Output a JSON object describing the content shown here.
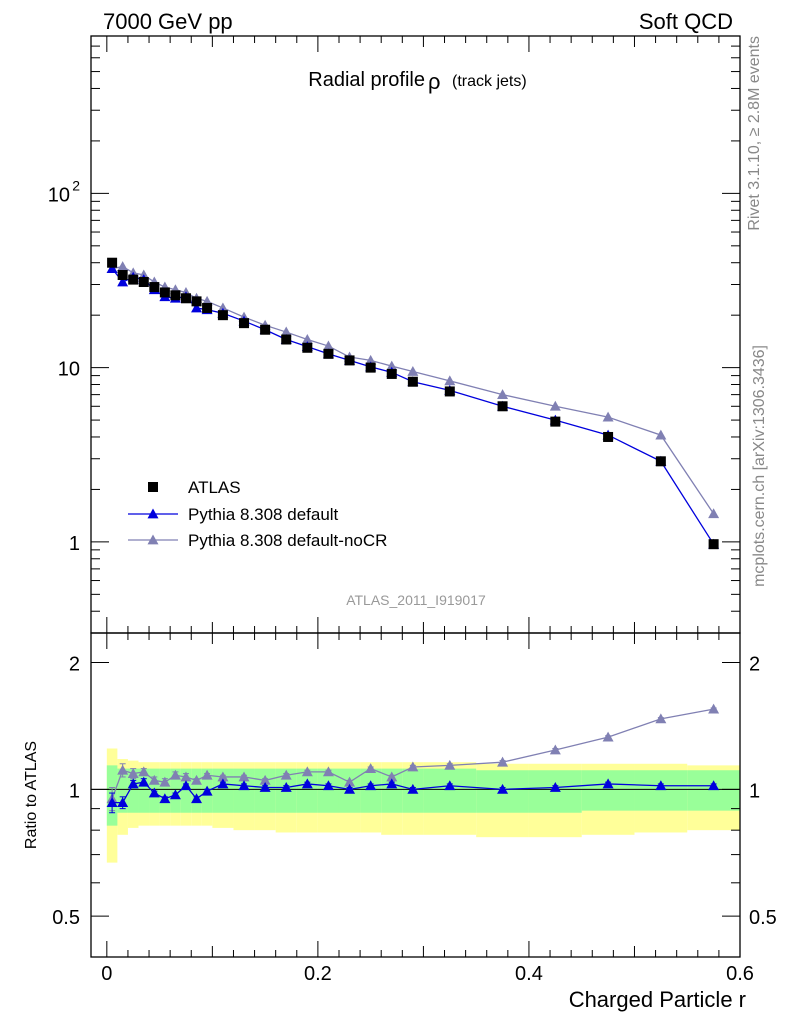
{
  "header": {
    "left": "7000 GeV pp",
    "right": "Soft QCD"
  },
  "side_labels": {
    "top": "Rivet 3.1.10, ≥ 2.8M events",
    "bottom": "mcplots.cern.ch [arXiv:1306.3436]"
  },
  "analysis_tag": "ATLAS_2011_I919017",
  "colors": {
    "atlas": "#000000",
    "default": "#0000dd",
    "nocr": "#8080b3",
    "band_stat": "#99ff99",
    "band_total": "#ffff99"
  },
  "chart_data": [
    {
      "type": "line",
      "title": "Radial profile",
      "title_symbol": "ρ",
      "title_suffix": "(track jets)",
      "xlabel": "Charged Particle r",
      "ylabel": "",
      "log_y": true,
      "xlim": [
        -0.015,
        0.6
      ],
      "ylim": [
        0.3,
        800
      ],
      "y_tick_labels": [
        {
          "value": 100,
          "base": "10",
          "exp": "2"
        },
        {
          "value": 10,
          "base": "10",
          "exp": ""
        },
        {
          "value": 1,
          "base": "1",
          "exp": ""
        }
      ],
      "legend": {
        "position": "bottom-left",
        "entries": [
          "ATLAS",
          "Pythia 8.308 default",
          "Pythia 8.308 default-noCR"
        ]
      },
      "x": [
        0.005,
        0.015,
        0.025,
        0.035,
        0.045,
        0.055,
        0.065,
        0.075,
        0.085,
        0.095,
        0.11,
        0.13,
        0.15,
        0.17,
        0.19,
        0.21,
        0.23,
        0.25,
        0.27,
        0.29,
        0.325,
        0.375,
        0.425,
        0.475,
        0.525,
        0.575
      ],
      "series": [
        {
          "name": "ATLAS",
          "marker": "square",
          "values": [
            40,
            34,
            32,
            31,
            29,
            27,
            26,
            25,
            24,
            22,
            20,
            18,
            16.5,
            14.5,
            13,
            12,
            11,
            10,
            9.2,
            8.3,
            7.3,
            6,
            4.9,
            4,
            2.9,
            0.97
          ]
        },
        {
          "name": "Pythia 8.308 default",
          "marker": "triangle",
          "values": [
            37,
            31,
            33,
            32,
            28,
            25.5,
            25,
            25.5,
            22,
            21.5,
            20.5,
            18.5,
            16.5,
            14.5,
            13.2,
            12,
            11,
            10.1,
            9.4,
            8.3,
            7.4,
            6,
            5,
            4.1,
            2.9,
            0.97
          ]
        },
        {
          "name": "Pythia 8.308 default-noCR",
          "marker": "triangle",
          "values": [
            37,
            38,
            35,
            34,
            31,
            29,
            28,
            27,
            25,
            24,
            22,
            19.5,
            17.5,
            16,
            14.5,
            13.3,
            11.5,
            11,
            10.2,
            9.5,
            8.4,
            7,
            6,
            5.2,
            4.1,
            1.45
          ]
        }
      ]
    },
    {
      "type": "line",
      "title": "",
      "xlabel": "Charged Particle r",
      "ylabel": "Ratio to ATLAS",
      "log_y": true,
      "xlim": [
        -0.015,
        0.6
      ],
      "ylim": [
        0.4,
        2.35
      ],
      "y_tick_labels": [
        {
          "value": 2,
          "text": "2"
        },
        {
          "value": 1,
          "text": "1"
        },
        {
          "value": 0.5,
          "text": "0.5"
        }
      ],
      "x_tick_labels": [
        {
          "value": 0,
          "text": "0"
        },
        {
          "value": 0.2,
          "text": "0.2"
        },
        {
          "value": 0.4,
          "text": "0.4"
        },
        {
          "value": 0.6,
          "text": "0.6"
        }
      ],
      "x": [
        0.005,
        0.015,
        0.025,
        0.035,
        0.045,
        0.055,
        0.065,
        0.075,
        0.085,
        0.095,
        0.11,
        0.13,
        0.15,
        0.17,
        0.19,
        0.21,
        0.23,
        0.25,
        0.27,
        0.29,
        0.325,
        0.375,
        0.425,
        0.475,
        0.525,
        0.575
      ],
      "bins": [
        [
          0,
          0.01
        ],
        [
          0.01,
          0.02
        ],
        [
          0.02,
          0.03
        ],
        [
          0.03,
          0.04
        ],
        [
          0.04,
          0.05
        ],
        [
          0.05,
          0.06
        ],
        [
          0.06,
          0.07
        ],
        [
          0.07,
          0.08
        ],
        [
          0.08,
          0.09
        ],
        [
          0.09,
          0.1
        ],
        [
          0.1,
          0.12
        ],
        [
          0.12,
          0.14
        ],
        [
          0.14,
          0.16
        ],
        [
          0.16,
          0.18
        ],
        [
          0.18,
          0.2
        ],
        [
          0.2,
          0.22
        ],
        [
          0.22,
          0.24
        ],
        [
          0.24,
          0.26
        ],
        [
          0.26,
          0.28
        ],
        [
          0.28,
          0.3
        ],
        [
          0.3,
          0.35
        ],
        [
          0.35,
          0.4
        ],
        [
          0.4,
          0.45
        ],
        [
          0.45,
          0.5
        ],
        [
          0.5,
          0.55
        ],
        [
          0.55,
          0.6
        ]
      ],
      "stat_band": {
        "low": [
          0.82,
          0.88,
          0.88,
          0.88,
          0.88,
          0.88,
          0.88,
          0.88,
          0.88,
          0.88,
          0.88,
          0.88,
          0.88,
          0.88,
          0.88,
          0.88,
          0.88,
          0.88,
          0.88,
          0.88,
          0.88,
          0.88,
          0.88,
          0.89,
          0.89,
          0.89
        ],
        "high": [
          1.14,
          1.12,
          1.12,
          1.12,
          1.12,
          1.12,
          1.12,
          1.12,
          1.12,
          1.12,
          1.12,
          1.12,
          1.12,
          1.12,
          1.12,
          1.12,
          1.12,
          1.12,
          1.12,
          1.12,
          1.12,
          1.11,
          1.11,
          1.11,
          1.11,
          1.11
        ]
      },
      "total_band": {
        "low": [
          0.67,
          0.78,
          0.81,
          0.82,
          0.82,
          0.82,
          0.82,
          0.82,
          0.82,
          0.82,
          0.81,
          0.8,
          0.8,
          0.79,
          0.79,
          0.79,
          0.79,
          0.79,
          0.78,
          0.78,
          0.78,
          0.77,
          0.77,
          0.78,
          0.79,
          0.8
        ],
        "high": [
          1.25,
          1.18,
          1.17,
          1.16,
          1.16,
          1.16,
          1.16,
          1.16,
          1.16,
          1.16,
          1.16,
          1.16,
          1.16,
          1.16,
          1.16,
          1.16,
          1.16,
          1.16,
          1.16,
          1.16,
          1.16,
          1.15,
          1.15,
          1.15,
          1.15,
          1.14
        ]
      },
      "series": [
        {
          "name": "Pythia 8.308 default",
          "marker": "triangle",
          "values": [
            0.93,
            0.93,
            1.03,
            1.04,
            0.98,
            0.95,
            0.97,
            1.02,
            0.95,
            0.99,
            1.03,
            1.02,
            1.01,
            1.01,
            1.03,
            1.02,
            1.0,
            1.02,
            1.03,
            1.0,
            1.02,
            1.0,
            1.01,
            1.03,
            1.02,
            1.02
          ],
          "errors": [
            0.05,
            0.03,
            0.02,
            0.02,
            0.01,
            0.01,
            0.01,
            0.01,
            0.01,
            0.01,
            0.01,
            0.01,
            0.01,
            0.01,
            0.01,
            0.01,
            0.01,
            0.01,
            0.01,
            0.01,
            0.01,
            0.01,
            0.01,
            0.01,
            0.01,
            0.01
          ]
        },
        {
          "name": "Pythia 8.308 default-noCR",
          "marker": "triangle",
          "values": [
            0.95,
            1.11,
            1.09,
            1.1,
            1.05,
            1.04,
            1.08,
            1.07,
            1.05,
            1.08,
            1.07,
            1.07,
            1.05,
            1.08,
            1.1,
            1.1,
            1.04,
            1.12,
            1.07,
            1.13,
            1.14,
            1.16,
            1.24,
            1.33,
            1.47,
            1.55
          ],
          "errors": [
            0.06,
            0.04,
            0.03,
            0.02,
            0.02,
            0.02,
            0.02,
            0.02,
            0.01,
            0.01,
            0.01,
            0.01,
            0.01,
            0.01,
            0.01,
            0.01,
            0.01,
            0.01,
            0.01,
            0.01,
            0.01,
            0.01,
            0.01,
            0.01,
            0.01,
            0.01
          ]
        }
      ]
    }
  ]
}
